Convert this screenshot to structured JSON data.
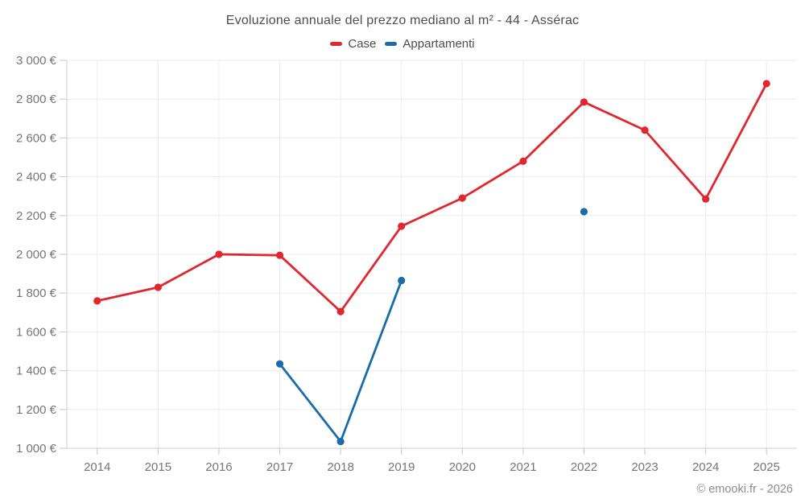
{
  "title": "Evoluzione annuale del prezzo mediano al m² - 44 - Assérac",
  "legend": [
    {
      "label": "Case",
      "color": "#e02730"
    },
    {
      "label": "Appartamenti",
      "color": "#1a6ca8"
    }
  ],
  "footer": "© emooki.fr - 2026",
  "chart_data": {
    "type": "line",
    "title": "Evoluzione annuale del prezzo mediano al m² - 44 - Assérac",
    "categories": [
      2014,
      2015,
      2016,
      2017,
      2018,
      2019,
      2020,
      2021,
      2022,
      2023,
      2024,
      2025
    ],
    "series": [
      {
        "name": "Case",
        "color": "#e02730",
        "values": [
          1760,
          1830,
          2000,
          1995,
          1705,
          2145,
          2290,
          2480,
          2785,
          2640,
          2285,
          2880
        ]
      },
      {
        "name": "Appartamenti",
        "color": "#1a6ca8",
        "values": [
          null,
          null,
          null,
          1435,
          1035,
          1865,
          null,
          null,
          2220,
          null,
          null,
          null
        ]
      }
    ],
    "xlabel": "",
    "ylabel": "",
    "ylim": [
      1000,
      3000
    ],
    "ytick_step": 200,
    "ytick_suffix": " €",
    "grid": true,
    "legend_position": "top"
  },
  "colors": {
    "grid": "#ececec",
    "axis": "#cfcfcf",
    "tick": "#c6c6c6",
    "axis_label": "#757575",
    "title_text": "#4d4d4d",
    "footer_text": "#8c8c8c",
    "background": "#ffffff"
  }
}
